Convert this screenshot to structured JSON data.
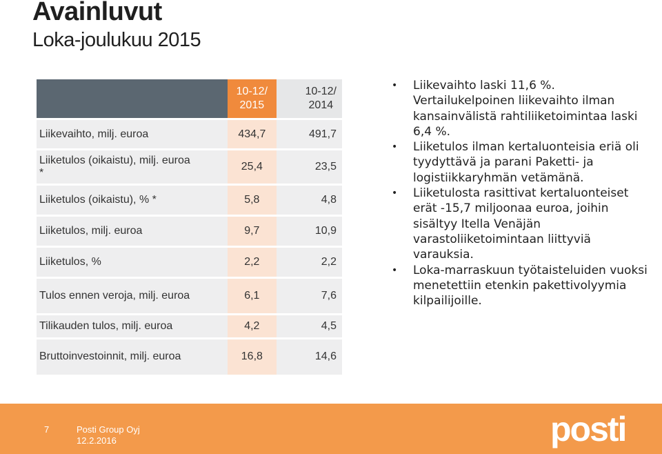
{
  "slide": {
    "title": "Avainluvut",
    "subtitle": "Loka-joulukuu 2015"
  },
  "table": {
    "headers": [
      "",
      "10-12/\n2015",
      "10-12/\n2014"
    ],
    "rows": [
      {
        "label": "Liikevaihto, milj. euroa",
        "v2015": "434,7",
        "v2014": "491,7"
      },
      {
        "label": "Liiketulos (oikaistu), milj. euroa *",
        "v2015": "25,4",
        "v2014": "23,5"
      },
      {
        "label": "Liiketulos (oikaistu), % *",
        "v2015": "5,8",
        "v2014": "4,8"
      },
      {
        "label": "Liiketulos, milj. euroa",
        "v2015": "9,7",
        "v2014": "10,9"
      },
      {
        "label": "Liiketulos, %",
        "v2015": "2,2",
        "v2014": "2,2"
      },
      {
        "label": "Tulos ennen veroja, milj. euroa",
        "v2015": "6,1",
        "v2014": "7,6"
      },
      {
        "label": "Tilikauden tulos, milj. euroa",
        "v2015": "4,2",
        "v2014": "4,5"
      },
      {
        "label": "Bruttoinvestoinnit, milj. euroa",
        "v2015": "16,8",
        "v2014": "14,6"
      }
    ]
  },
  "bullets": [
    "Liikevaihto laski 11,6 %. Vertailukelpoinen liikevaihto ilman kansainvälistä rahtiliiketoimintaa laski 6,4 %.",
    "Liiketulos ilman kertaluonteisia eriä oli tyydyttävä ja parani Paketti- ja logistiikkaryhmän vetämänä.",
    "Liiketulosta rasittivat kertaluonteiset erät -15,7 miljoonaa euroa, joihin sisältyy Itella Venäjän varastoliiketoimintaan liittyviä varauksia.",
    "Loka-marraskuun työtaisteluiden vuoksi menetettiin etenkin pakettivolyymia kilpailijoille."
  ],
  "footer": {
    "page_number": "7",
    "company": "Posti Group Oyj",
    "date": "12.2.2016",
    "logo_text": "posti",
    "background": "#f39a4b"
  },
  "colors": {
    "header_dark": "#5b6771",
    "accent_orange": "#f08a3c",
    "highlight_column": "#fbe3d3",
    "row_gray": "#eeeeef"
  }
}
